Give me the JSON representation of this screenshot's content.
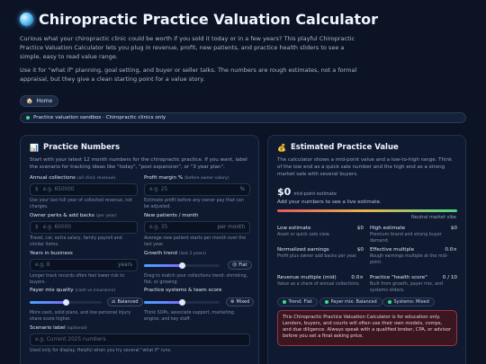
{
  "header": {
    "title": "Chiropractic Practice Valuation Calculator",
    "intro1": "Curious what your chiropractic clinic could be worth if you sold it today or in a few years? This playful Chiropractic Practice Valuation Calculator lets you plug in revenue, profit, new patients, and practice health sliders to see a simple, easy to read value range.",
    "intro2": "Use it for \"what if\" planning, goal setting, and buyer or seller talks. The numbers are rough estimates, not a formal appraisal, but they give a clean starting point for a value story.",
    "home_label": "Home",
    "banner": "Practice valuation sandbox · Chiropractic clinics only"
  },
  "numbers": {
    "title": "Practice Numbers",
    "desc": "Start with your latest 12 month numbers for the chiropractic practice. If you want, label the scenario for tracking ideas like \"today\", \"post expansion\", or \"3 year plan\".",
    "annual": {
      "label": "Annual collections",
      "hint": "(all clinic revenue)",
      "prefix": "$",
      "placeholder": "e.g. 650000",
      "help": "Use your last full year of collected revenue, not charges."
    },
    "margin": {
      "label": "Profit margin %",
      "hint": "(before owner salary)",
      "placeholder": "e.g. 25",
      "suffix": "%",
      "help": "Estimate profit before any owner pay that can be adjusted."
    },
    "owner": {
      "label": "Owner perks & add backs",
      "hint": "(per year)",
      "prefix": "$",
      "placeholder": "e.g. 60000",
      "help": "Travel, car, extra salary, family payroll and similar items."
    },
    "newpts": {
      "label": "New patients / month",
      "placeholder": "e.g. 35",
      "suffix": "per month",
      "help": "Average new patient starts per month over the last year."
    },
    "years": {
      "label": "Years in business",
      "placeholder": "e.g. 8",
      "suffix": "years",
      "help": "Longer track records often feel lower risk to buyers."
    },
    "growth": {
      "label": "Growth trend",
      "hint": "(last 3 years)",
      "badge": "Flat",
      "value": 0.5,
      "help": "Drag to match your collections trend: shrinking, flat, or growing."
    },
    "payer": {
      "label": "Payer mix quality",
      "hint": "(cash vs insurance)",
      "badge": "Balanced",
      "value": 0.5,
      "help": "More cash, solid plans, and low personal injury share score higher."
    },
    "systems": {
      "label": "Practice systems & team score",
      "badge": "Mixed",
      "value": 0.5,
      "help": "Think SOPs, associate support, marketing engine, and key staff."
    },
    "scenario": {
      "label": "Scenario label",
      "hint": "(optional)",
      "placeholder": "e.g. Current 2025 numbers",
      "help": "Used only for display. Helpful when you try several \"what if\" runs."
    }
  },
  "estimate": {
    "title": "Estimated Practice Value",
    "desc": "The calculator shows a mid-point value and a low-to-high range. Think of the low end as a quick sale number and the high end as a strong market sale with several buyers.",
    "mid_value": "$0",
    "mid_label": "mid-point estimate",
    "add_prompt": "Add your numbers to see a live estimate.",
    "vibe": "Neutral market vibe",
    "stats": [
      {
        "label": "Low estimate",
        "value": "$0",
        "sub": "Asset or quick sale view."
      },
      {
        "label": "High estimate",
        "value": "$0",
        "sub": "Premium brand and strong buyer demand."
      },
      {
        "label": "Normalized earnings",
        "value": "$0",
        "sub": "Profit plus owner add backs per year."
      },
      {
        "label": "Effective multiple",
        "value": "0.0×",
        "sub": "Rough earnings multiple at the mid-point."
      },
      {
        "label": "Revenue multiple (mid)",
        "value": "0.0×",
        "sub": "Value as a share of annual collections."
      },
      {
        "label": "Practice \"health score\"",
        "value": "0 / 10",
        "sub": "Built from growth, payer mix, and systems sliders."
      }
    ],
    "chips": [
      "Trend: Flat",
      "Payer mix: Balanced",
      "Systems: Mixed"
    ],
    "warning": "This Chiropractic Practice Valuation Calculator is for education only. Lenders, buyers, and courts will often use their own models, comps, and due diligence. Always speak with a qualified broker, CPA, or advisor before you set a final asking price."
  },
  "colors": {
    "accent": "#4aa3ff",
    "warn_bg": "#3a1620",
    "bg": "#0b1325"
  }
}
